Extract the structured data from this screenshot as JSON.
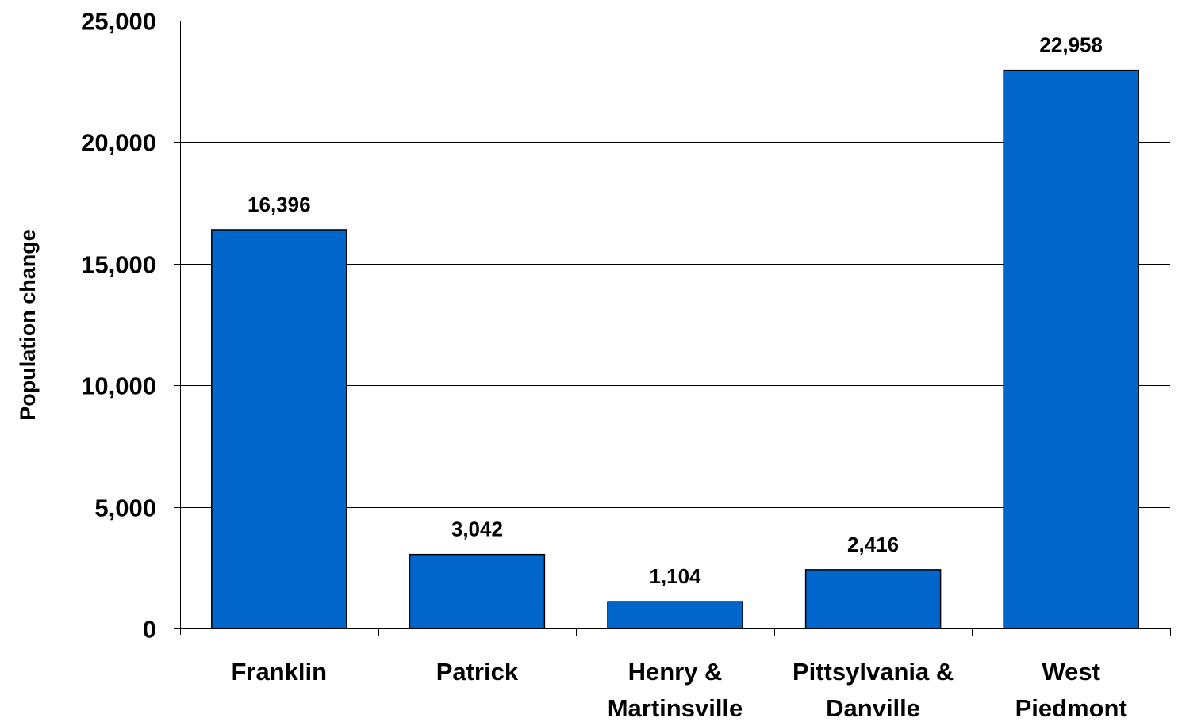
{
  "chart_data": {
    "type": "bar",
    "categories": [
      [
        "Franklin"
      ],
      [
        "Patrick"
      ],
      [
        "Henry &",
        "Martinsville"
      ],
      [
        "Pittsylvania &",
        "Danville"
      ],
      [
        "West",
        "Piedmont"
      ]
    ],
    "values": [
      16396,
      3042,
      1104,
      2416,
      22958
    ],
    "value_labels": [
      "16,396",
      "3,042",
      "1,104",
      "2,416",
      "22,958"
    ],
    "title": "",
    "xlabel": "",
    "ylabel": "Population change",
    "ylim": [
      0,
      25000
    ],
    "yticks": [
      0,
      5000,
      10000,
      15000,
      20000,
      25000
    ],
    "ytick_labels": [
      "0",
      "5,000",
      "10,000",
      "15,000",
      "20,000",
      "25,000"
    ],
    "grid": true,
    "legend": "none",
    "colors": {
      "bar": "#0066CC",
      "bar_edge": "#000000",
      "grid": "#000000",
      "axis": "#000000"
    }
  }
}
